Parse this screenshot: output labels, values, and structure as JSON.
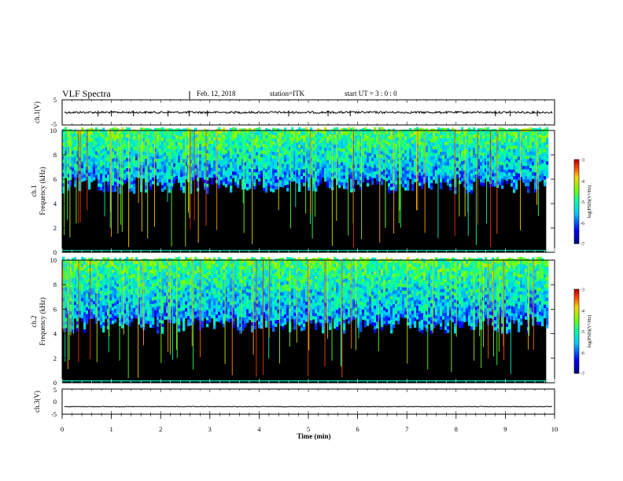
{
  "header": {
    "title": "VLF Spectra",
    "date": "Feb. 12, 2018",
    "station": "station=ITK",
    "start_ut": "start  UT =   3 : 0  : 0"
  },
  "colors": {
    "background": "#ffffff",
    "spectrogram_floor": "#000000",
    "trace": "#000000"
  },
  "chart_data": [
    {
      "type": "line",
      "panel": "ch1-waveform",
      "xlabel": "",
      "ylabel": "ch.1(V)",
      "xlim": [
        0,
        10
      ],
      "ylim": [
        -5,
        5
      ],
      "yticks": [
        "5",
        "-5"
      ],
      "baseline_value": 0,
      "spike_times_min": [
        0.73,
        1.0,
        1.45,
        2.15,
        2.58,
        2.95,
        4.6,
        5.4,
        5.85,
        8.8,
        9.1,
        9.65
      ]
    },
    {
      "type": "heatmap",
      "panel": "ch1-spectrogram",
      "ylabel": "ch.1\nFrequency (kHz)",
      "xlim": [
        0,
        10
      ],
      "ylim": [
        0,
        10
      ],
      "yticks": [
        "0",
        "2",
        "4",
        "6",
        "8",
        "10"
      ],
      "data_end_min": 9.83,
      "noise_floor_kHz": 5.5,
      "colorbar": {
        "label": "log(PSD)(V²/Hz)",
        "range": [
          -7,
          -3
        ],
        "ticks": [
          "-3",
          "-4",
          "-5",
          "-6",
          "-7"
        ]
      }
    },
    {
      "type": "heatmap",
      "panel": "ch2-spectrogram",
      "ylabel": "ch.2\nFrequency (kHz)",
      "xlim": [
        0,
        10
      ],
      "ylim": [
        0,
        10
      ],
      "yticks": [
        "0",
        "2",
        "4",
        "6",
        "8",
        "10"
      ],
      "data_end_min": 9.83,
      "noise_floor_kHz": 5.0,
      "colorbar": {
        "label": "log(PSD)(V²/Hz)",
        "range": [
          -7,
          -3
        ],
        "ticks": [
          "-3",
          "-4",
          "-5",
          "-6",
          "-7"
        ]
      }
    },
    {
      "type": "line",
      "panel": "ch3-waveform",
      "ylabel": "ch.3(V)",
      "xlabel": "Time (min)",
      "xlim": [
        0,
        10
      ],
      "ylim": [
        -5,
        5
      ],
      "yticks": [
        "5",
        "0",
        "-5"
      ],
      "xticks": [
        "0",
        "1",
        "2",
        "3",
        "4",
        "5",
        "6",
        "7",
        "8",
        "9",
        "10"
      ],
      "baseline_value": -2
    }
  ]
}
